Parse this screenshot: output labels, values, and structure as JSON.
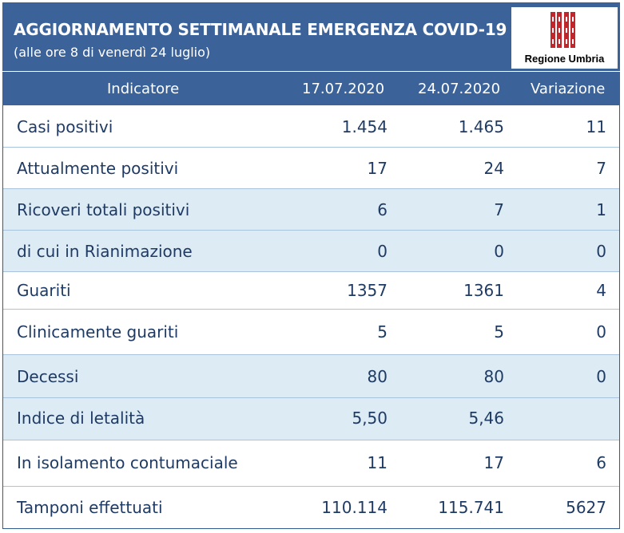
{
  "header": {
    "title": "AGGIORNAMENTO SETTIMANALE EMERGENZA COVID-19",
    "subtitle": "(alle ore 8 di venerdì 24 luglio)",
    "logo_text": "Regione Umbria",
    "logo_icon": "regione-umbria-emblem-icon"
  },
  "colors": {
    "header_blue": "#3b639a",
    "shaded_row": "#ddebf4",
    "text_dark_blue": "#1f3b64",
    "logo_red": "#c0272d"
  },
  "table": {
    "columns": [
      "Indicatore",
      "17.07.2020",
      "24.07.2020",
      "Variazione"
    ],
    "rows": [
      {
        "label": "Casi positivi",
        "prev": "1.454",
        "curr": "1.465",
        "diff": "11"
      },
      {
        "label": "Attualmente positivi",
        "prev": "17",
        "curr": "24",
        "diff": "7"
      },
      {
        "label": "Ricoveri totali positivi",
        "prev": "6",
        "curr": "7",
        "diff": "1"
      },
      {
        "label": "di cui in Rianimazione",
        "prev": "0",
        "curr": "0",
        "diff": "0"
      },
      {
        "label": "Guariti",
        "prev": "1357",
        "curr": "1361",
        "diff": "4"
      },
      {
        "label": "Clinicamente guariti",
        "prev": "5",
        "curr": "5",
        "diff": "0"
      },
      {
        "label": "Decessi",
        "prev": "80",
        "curr": "80",
        "diff": "0"
      },
      {
        "label": "Indice di letalità",
        "prev": "5,50",
        "curr": "5,46",
        "diff": ""
      },
      {
        "label": "In isolamento contumaciale",
        "prev": "11",
        "curr": "17",
        "diff": "6"
      },
      {
        "label": "Tamponi effettuati",
        "prev": "110.114",
        "curr": "115.741",
        "diff": "5627"
      }
    ]
  }
}
